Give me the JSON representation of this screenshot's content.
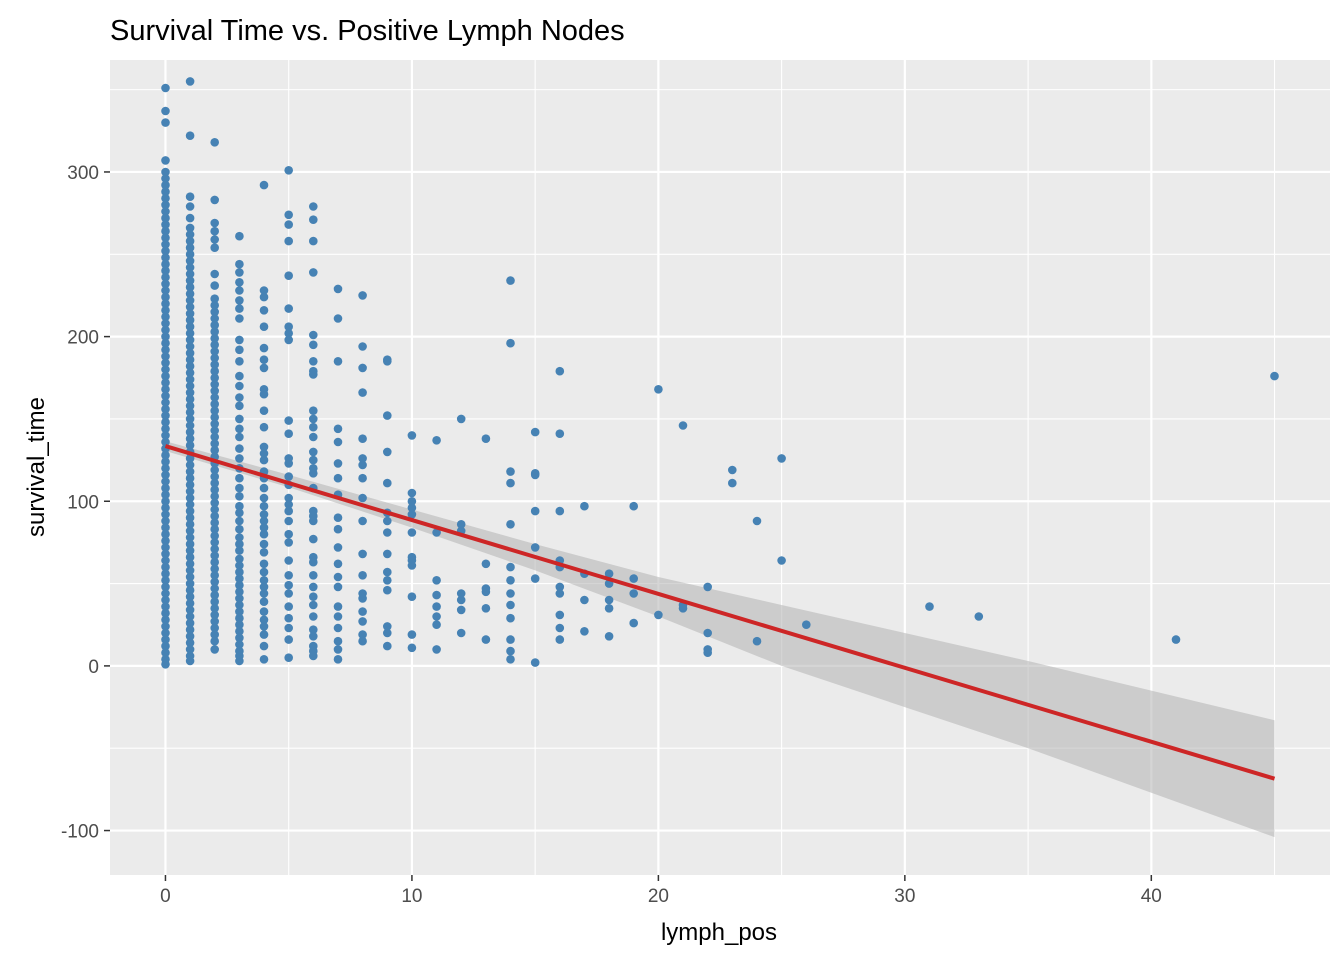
{
  "chart_data": {
    "type": "scatter",
    "title": "Survival Time vs. Positive Lymph Nodes",
    "xlabel": "lymph_pos",
    "ylabel": "survival_time",
    "xlim": [
      -2.25,
      47.25
    ],
    "ylim": [
      -127,
      368
    ],
    "x_ticks": [
      0,
      10,
      20,
      30,
      40
    ],
    "y_ticks": [
      -100,
      0,
      100,
      200,
      300
    ],
    "grid": true,
    "colors": {
      "panel_background": "#ebebeb",
      "grid": "#ffffff",
      "points": "#4682b4",
      "fit_line": "#cd2626",
      "confidence_band": "#b3b3b3"
    },
    "fit_line": {
      "x": [
        0,
        45
      ],
      "y": [
        133.5,
        -68.5
      ]
    },
    "confidence_band": {
      "x": [
        0,
        5,
        10,
        15,
        20,
        25,
        30,
        35,
        40,
        45
      ],
      "lower": [
        130.5,
        108.5,
        84.0,
        58.0,
        30.0,
        0.0,
        -25.0,
        -50.0,
        -77.0,
        -104.0
      ],
      "upper": [
        136.5,
        116.0,
        95.0,
        74.0,
        54.0,
        37.0,
        20.0,
        3.0,
        -15.0,
        -33.0
      ]
    },
    "points": [
      {
        "x": 0,
        "values": [
          351,
          337,
          330,
          307,
          300,
          296,
          292,
          288,
          284,
          280,
          276,
          272,
          268,
          264,
          260,
          256,
          252,
          248,
          244,
          240,
          236,
          232,
          228,
          224,
          220,
          216,
          212,
          208,
          204,
          200,
          196,
          192,
          188,
          184,
          180,
          176,
          172,
          168,
          164,
          160,
          156,
          152,
          148,
          144,
          140,
          136,
          132,
          128,
          124,
          120,
          116,
          112,
          108,
          104,
          100,
          96,
          92,
          88,
          84,
          80,
          76,
          72,
          68,
          64,
          60,
          56,
          52,
          48,
          44,
          40,
          36,
          32,
          28,
          24,
          20,
          16,
          12,
          8,
          4,
          1
        ]
      },
      {
        "x": 1,
        "values": [
          355,
          322,
          285,
          279,
          272,
          266,
          262,
          258,
          254,
          250,
          246,
          242,
          238,
          234,
          230,
          226,
          222,
          218,
          214,
          210,
          206,
          202,
          198,
          194,
          190,
          186,
          182,
          178,
          174,
          170,
          166,
          162,
          158,
          154,
          150,
          146,
          142,
          138,
          134,
          130,
          126,
          122,
          118,
          114,
          110,
          106,
          102,
          98,
          94,
          90,
          86,
          82,
          78,
          74,
          70,
          66,
          62,
          58,
          54,
          50,
          46,
          42,
          38,
          34,
          30,
          26,
          22,
          18,
          14,
          10,
          6,
          3
        ]
      },
      {
        "x": 2,
        "values": [
          318,
          283,
          269,
          264,
          259,
          254,
          238,
          231,
          223,
          219,
          215,
          211,
          207,
          203,
          199,
          195,
          191,
          187,
          183,
          179,
          175,
          171,
          167,
          163,
          159,
          155,
          151,
          147,
          143,
          139,
          135,
          131,
          127,
          123,
          119,
          115,
          111,
          107,
          103,
          99,
          95,
          91,
          87,
          83,
          79,
          75,
          71,
          67,
          63,
          59,
          55,
          51,
          47,
          43,
          39,
          35,
          31,
          27,
          23,
          19,
          15,
          10
        ]
      },
      {
        "x": 3,
        "values": [
          261,
          244,
          239,
          233,
          228,
          222,
          217,
          211,
          198,
          192,
          185,
          176,
          170,
          163,
          158,
          150,
          144,
          139,
          132,
          126,
          120,
          114,
          108,
          103,
          97,
          93,
          88,
          83,
          78,
          74,
          70,
          65,
          61,
          57,
          53,
          49,
          45,
          41,
          37,
          33,
          29,
          25,
          21,
          17,
          13,
          9,
          6,
          3
        ]
      },
      {
        "x": 4,
        "values": [
          292,
          228,
          224,
          216,
          206,
          193,
          186,
          181,
          168,
          165,
          155,
          145,
          133,
          129,
          125,
          118,
          114,
          108,
          102,
          97,
          92,
          88,
          84,
          80,
          74,
          69,
          62,
          57,
          52,
          48,
          44,
          39,
          33,
          28,
          24,
          19,
          12,
          4
        ]
      },
      {
        "x": 5,
        "values": [
          301,
          274,
          268,
          258,
          237,
          217,
          206,
          202,
          198,
          149,
          141,
          126,
          123,
          115,
          110,
          102,
          98,
          94,
          88,
          80,
          75,
          64,
          55,
          49,
          44,
          36,
          29,
          23,
          16,
          5
        ]
      },
      {
        "x": 6,
        "values": [
          279,
          271,
          258,
          239,
          201,
          195,
          185,
          179,
          177,
          155,
          150,
          145,
          139,
          130,
          125,
          120,
          117,
          108,
          94,
          91,
          88,
          77,
          66,
          63,
          55,
          48,
          42,
          37,
          30,
          22,
          18,
          12,
          9,
          6
        ]
      },
      {
        "x": 7,
        "values": [
          229,
          211,
          185,
          144,
          136,
          123,
          114,
          104,
          90,
          83,
          72,
          62,
          54,
          48,
          36,
          30,
          23,
          15,
          10,
          4
        ]
      },
      {
        "x": 8,
        "values": [
          225,
          194,
          181,
          166,
          138,
          126,
          122,
          114,
          102,
          88,
          68,
          55,
          44,
          41,
          33,
          27,
          19,
          15
        ]
      },
      {
        "x": 9,
        "values": [
          186,
          185,
          152,
          130,
          111,
          93,
          88,
          81,
          68,
          57,
          52,
          46,
          24,
          20,
          12
        ]
      },
      {
        "x": 10,
        "values": [
          140,
          105,
          100,
          96,
          92,
          81,
          66,
          64,
          61,
          42,
          19,
          11
        ]
      },
      {
        "x": 11,
        "values": [
          137,
          81,
          52,
          43,
          36,
          30,
          25,
          10
        ]
      },
      {
        "x": 12,
        "values": [
          150,
          86,
          82,
          44,
          40,
          34,
          20
        ]
      },
      {
        "x": 13,
        "values": [
          138,
          62,
          47,
          45,
          35,
          16
        ]
      },
      {
        "x": 14,
        "values": [
          234,
          196,
          118,
          111,
          86,
          60,
          52,
          44,
          37,
          29,
          16,
          9,
          4
        ]
      },
      {
        "x": 15,
        "values": [
          142,
          117,
          116,
          94,
          72,
          53,
          2
        ]
      },
      {
        "x": 16,
        "values": [
          179,
          141,
          94,
          64,
          60,
          48,
          44,
          31,
          23,
          16
        ]
      },
      {
        "x": 17,
        "values": [
          97,
          56,
          40,
          21
        ]
      },
      {
        "x": 18,
        "values": [
          56,
          50,
          40,
          35,
          18
        ]
      },
      {
        "x": 19,
        "values": [
          97,
          53,
          44,
          26
        ]
      },
      {
        "x": 20,
        "values": [
          168,
          31
        ]
      },
      {
        "x": 21,
        "values": [
          146,
          37,
          35
        ]
      },
      {
        "x": 22,
        "values": [
          48,
          20,
          10,
          8
        ]
      },
      {
        "x": 23,
        "values": [
          119,
          111
        ]
      },
      {
        "x": 24,
        "values": [
          88,
          15
        ]
      },
      {
        "x": 25,
        "values": [
          126,
          64
        ]
      },
      {
        "x": 26,
        "values": [
          25
        ]
      },
      {
        "x": 31,
        "values": [
          36
        ]
      },
      {
        "x": 33,
        "values": [
          30
        ]
      },
      {
        "x": 41,
        "values": [
          16
        ]
      },
      {
        "x": 45,
        "values": [
          176
        ]
      }
    ]
  }
}
